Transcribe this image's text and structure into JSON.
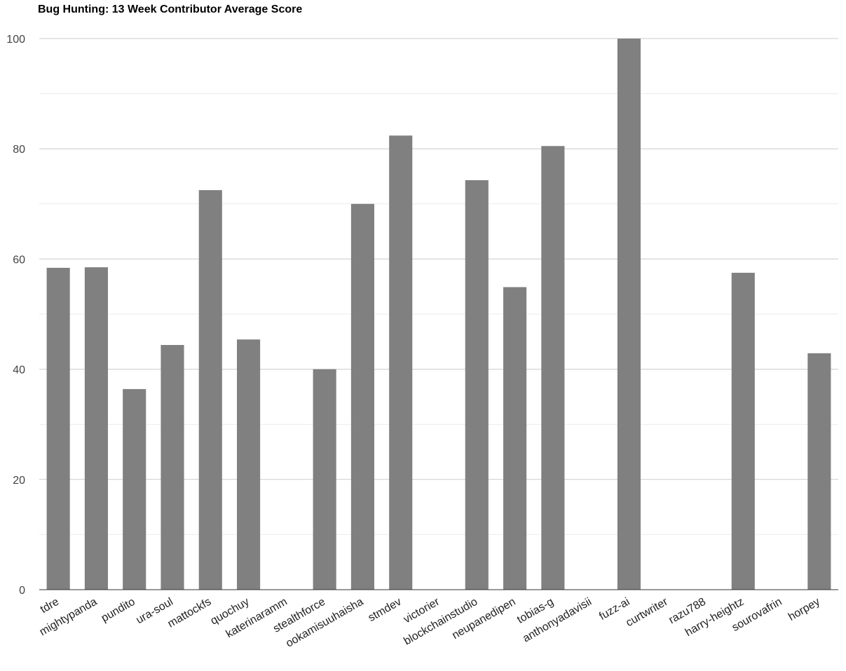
{
  "chart_data": {
    "type": "bar",
    "title": "Bug Hunting: 13 Week Contributor Average Score",
    "xlabel": "",
    "ylabel": "",
    "ylim": [
      0,
      100
    ],
    "yticks": [
      0,
      20,
      40,
      60,
      80,
      100
    ],
    "grid": true,
    "legend": "none",
    "bar_color": "#808080",
    "categories": [
      "tdre",
      "mightypanda",
      "pundito",
      "ura-soul",
      "mattockfs",
      "quochuy",
      "katerinaramm",
      "stealthforce",
      "ookamisuuhaisha",
      "stmdev",
      "victorier",
      "blockchainstudio",
      "neupanedipen",
      "tobias-g",
      "anthonyadavisii",
      "fuzz-ai",
      "curtwriter",
      "razu788",
      "harry-heightz",
      "sourovafrin",
      "horpey"
    ],
    "values": [
      58.4,
      58.5,
      36.4,
      44.4,
      72.5,
      45.4,
      0,
      40.0,
      70.0,
      82.4,
      0,
      74.3,
      54.9,
      80.5,
      0,
      100,
      0,
      0,
      57.5,
      0,
      42.9
    ]
  }
}
